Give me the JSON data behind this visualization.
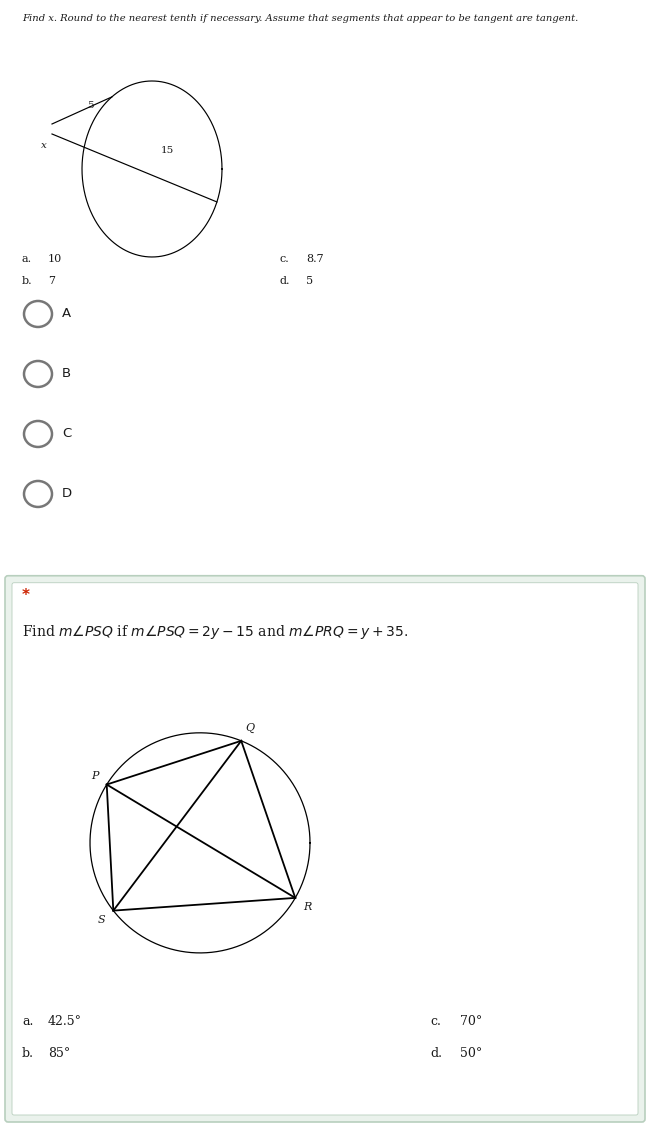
{
  "bg_color": "#ffffff",
  "light_bg": "#eaf2ec",
  "title1": "Find x. Round to the nearest tenth if necessary. Assume that segments that appear to be tangent are tangent.",
  "radio_labels": [
    "A",
    "B",
    "C",
    "D"
  ],
  "separator_color": "#b8cfbe",
  "star": "*",
  "q2_text_parts": [
    {
      "text": "Find ",
      "style": "normal"
    },
    {
      "text": "m",
      "style": "italic"
    },
    {
      "text": "∠",
      "style": "normal"
    },
    {
      "text": "PSQ",
      "style": "italic"
    },
    {
      "text": " if ",
      "style": "normal"
    },
    {
      "text": "m",
      "style": "italic"
    },
    {
      "text": "∠",
      "style": "normal"
    },
    {
      "text": "PSQ",
      "style": "italic"
    },
    {
      "text": " = 2",
      "style": "normal"
    },
    {
      "text": "y",
      "style": "italic"
    },
    {
      "text": " – 15 and ",
      "style": "normal"
    },
    {
      "text": "m",
      "style": "italic"
    },
    {
      "text": "∠",
      "style": "normal"
    },
    {
      "text": "PRQ",
      "style": "italic"
    },
    {
      "text": " = ",
      "style": "normal"
    },
    {
      "text": "y",
      "style": "italic"
    },
    {
      "text": " + 35.",
      "style": "normal"
    }
  ],
  "text_color": "#1a1a1a",
  "radio_color": "#777777",
  "q1_a": "10",
  "q1_b": "7",
  "q1_c": "8.7",
  "q1_d": "5",
  "q2_a": "42.5°",
  "q2_b": "85°",
  "q2_c": "70°",
  "q2_d": "50°"
}
